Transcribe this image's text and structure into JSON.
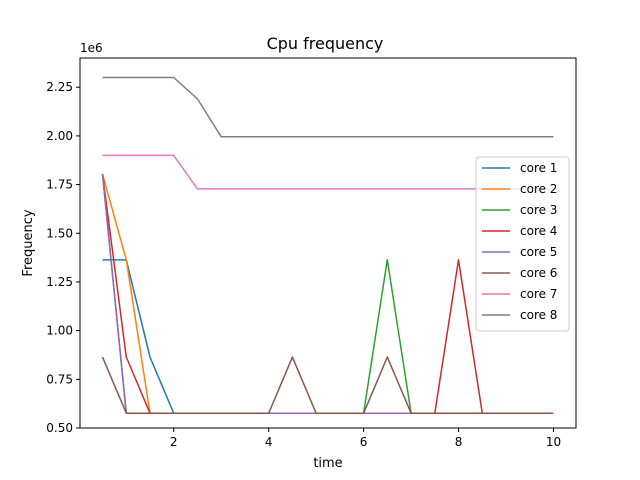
{
  "chart_data": {
    "type": "line",
    "title": "Cpu frequency",
    "xlabel": "time",
    "ylabel": "Frequency",
    "y_offset_label": "1e6",
    "xlim": [
      0.025,
      10.475
    ],
    "ylim": [
      0.5,
      2.4
    ],
    "x_ticks": [
      2,
      4,
      6,
      8,
      10
    ],
    "y_ticks": [
      0.5,
      0.75,
      1.0,
      1.25,
      1.5,
      1.75,
      2.0,
      2.25
    ],
    "y_tick_labels": [
      "0.50",
      "0.75",
      "1.00",
      "1.25",
      "1.50",
      "1.75",
      "2.00",
      "2.25"
    ],
    "legend_position": "center-right",
    "grid": false,
    "x": [
      0.5,
      1.0,
      1.5,
      2.0,
      2.5,
      3.0,
      3.5,
      4.0,
      4.5,
      5.0,
      5.5,
      6.0,
      6.5,
      7.0,
      7.5,
      8.0,
      8.5,
      9.0,
      9.5,
      10.0
    ],
    "series": [
      {
        "name": "core 1",
        "color": "#1f77b4",
        "values": [
          1.363,
          1.363,
          0.864,
          0.576,
          0.576,
          0.576,
          0.576,
          0.576,
          0.576,
          0.576,
          0.576,
          0.576,
          0.576,
          0.576,
          0.576,
          0.576,
          0.576,
          0.576,
          0.576,
          0.576
        ]
      },
      {
        "name": "core 2",
        "color": "#ff7f0e",
        "values": [
          1.804,
          1.363,
          0.576,
          0.576,
          0.576,
          0.576,
          0.576,
          0.576,
          0.576,
          0.576,
          0.576,
          0.576,
          0.576,
          0.576,
          0.576,
          0.576,
          0.576,
          0.576,
          0.576,
          0.576
        ]
      },
      {
        "name": "core 3",
        "color": "#2ca02c",
        "values": [
          1.804,
          0.576,
          0.576,
          0.576,
          0.576,
          0.576,
          0.576,
          0.576,
          0.576,
          0.576,
          0.576,
          0.576,
          1.363,
          0.576,
          0.576,
          0.576,
          0.576,
          0.576,
          0.576,
          0.576
        ]
      },
      {
        "name": "core 4",
        "color": "#d62728",
        "values": [
          1.804,
          0.864,
          0.576,
          0.576,
          0.576,
          0.576,
          0.576,
          0.576,
          0.576,
          0.576,
          0.576,
          0.576,
          0.576,
          0.576,
          0.576,
          1.363,
          0.576,
          0.576,
          0.576,
          0.576
        ]
      },
      {
        "name": "core 5",
        "color": "#9467bd",
        "values": [
          1.804,
          0.576,
          0.576,
          0.576,
          0.576,
          0.576,
          0.576,
          0.576,
          0.576,
          0.576,
          0.576,
          0.576,
          0.576,
          0.576,
          0.576,
          0.576,
          0.576,
          0.576,
          0.576,
          0.576
        ]
      },
      {
        "name": "core 6",
        "color": "#8c564b",
        "values": [
          0.864,
          0.576,
          0.576,
          0.576,
          0.576,
          0.576,
          0.576,
          0.576,
          0.864,
          0.576,
          0.576,
          0.576,
          0.864,
          0.576,
          0.576,
          0.576,
          0.576,
          0.576,
          0.576,
          0.576
        ]
      },
      {
        "name": "core 7",
        "color": "#e377c2",
        "values": [
          1.9,
          1.9,
          1.9,
          1.9,
          1.728,
          1.728,
          1.728,
          1.728,
          1.728,
          1.728,
          1.728,
          1.728,
          1.728,
          1.728,
          1.728,
          1.728,
          1.728,
          1.728,
          1.728,
          1.728
        ]
      },
      {
        "name": "core 8",
        "color": "#7f7f7f",
        "values": [
          2.3,
          2.3,
          2.3,
          2.3,
          2.19,
          1.996,
          1.996,
          1.996,
          1.996,
          1.996,
          1.996,
          1.996,
          1.996,
          1.996,
          1.996,
          1.996,
          1.996,
          1.996,
          1.996,
          1.996
        ]
      }
    ]
  }
}
